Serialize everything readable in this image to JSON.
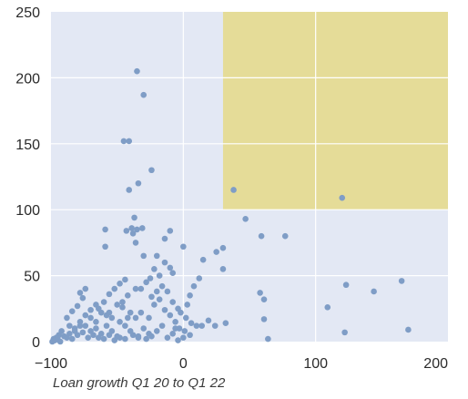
{
  "chart_data": {
    "type": "scatter",
    "xlabel": "Loan growth Q1 20 to Q1 22",
    "ylabel": "",
    "xlim": [
      -100,
      200
    ],
    "ylim": [
      0,
      250
    ],
    "x_ticks": [
      "−100",
      "0",
      "100",
      "200"
    ],
    "y_ticks": [
      "0",
      "50",
      "100",
      "150",
      "200",
      "250"
    ],
    "grid": true,
    "colors": {
      "plot_bg": "#e3e8f4",
      "grid": "#ffffff",
      "points": "#7f9dc6",
      "highlight": "#e5dc98"
    },
    "highlight_region": {
      "x": [
        30,
        200
      ],
      "y": [
        100,
        250
      ]
    },
    "points": [
      [
        -35,
        205
      ],
      [
        -30,
        187
      ],
      [
        -45,
        152
      ],
      [
        -41,
        152
      ],
      [
        -34,
        120
      ],
      [
        -24,
        130
      ],
      [
        -41,
        115
      ],
      [
        38,
        115
      ],
      [
        120,
        109
      ],
      [
        -37,
        94
      ],
      [
        -39,
        86
      ],
      [
        -31,
        86
      ],
      [
        -59,
        85
      ],
      [
        -43,
        84
      ],
      [
        -35,
        85
      ],
      [
        -38,
        82
      ],
      [
        -10,
        84
      ],
      [
        -14,
        78
      ],
      [
        -59,
        72
      ],
      [
        0,
        72
      ],
      [
        -36,
        75
      ],
      [
        -30,
        65
      ],
      [
        -20,
        65
      ],
      [
        -14,
        60
      ],
      [
        -10,
        56
      ],
      [
        -8,
        52
      ],
      [
        -22,
        55
      ],
      [
        -18,
        50
      ],
      [
        -25,
        48
      ],
      [
        -28,
        45
      ],
      [
        -32,
        40
      ],
      [
        -44,
        47
      ],
      [
        -48,
        44
      ],
      [
        -52,
        40
      ],
      [
        -56,
        36
      ],
      [
        -60,
        30
      ],
      [
        -66,
        28
      ],
      [
        -70,
        24
      ],
      [
        -74,
        40
      ],
      [
        -78,
        37
      ],
      [
        -76,
        33
      ],
      [
        -80,
        27
      ],
      [
        -84,
        23
      ],
      [
        -88,
        18
      ],
      [
        -62,
        22
      ],
      [
        -58,
        20
      ],
      [
        -54,
        18
      ],
      [
        -46,
        26
      ],
      [
        -40,
        22
      ],
      [
        -36,
        18
      ],
      [
        -32,
        22
      ],
      [
        -26,
        18
      ],
      [
        -22,
        28
      ],
      [
        -18,
        32
      ],
      [
        -14,
        24
      ],
      [
        -10,
        20
      ],
      [
        -6,
        15
      ],
      [
        -3,
        10
      ],
      [
        1,
        8
      ],
      [
        5,
        5
      ],
      [
        10,
        12
      ],
      [
        14,
        12
      ],
      [
        19,
        16
      ],
      [
        24,
        12
      ],
      [
        30,
        71
      ],
      [
        30,
        55
      ],
      [
        25,
        68
      ],
      [
        15,
        62
      ],
      [
        12,
        48
      ],
      [
        8,
        42
      ],
      [
        5,
        35
      ],
      [
        3,
        28
      ],
      [
        -2,
        22
      ],
      [
        -6,
        10
      ],
      [
        -16,
        12
      ],
      [
        -20,
        8
      ],
      [
        -26,
        6
      ],
      [
        -30,
        10
      ],
      [
        -34,
        4
      ],
      [
        -40,
        8
      ],
      [
        -44,
        12
      ],
      [
        -50,
        4
      ],
      [
        -54,
        8
      ],
      [
        -58,
        12
      ],
      [
        -62,
        6
      ],
      [
        -66,
        10
      ],
      [
        -70,
        8
      ],
      [
        -74,
        12
      ],
      [
        -78,
        15
      ],
      [
        -82,
        10
      ],
      [
        -86,
        6
      ],
      [
        -90,
        4
      ],
      [
        -92,
        8
      ],
      [
        -94,
        5
      ],
      [
        -96,
        3
      ],
      [
        -98,
        2
      ],
      [
        -99,
        0
      ],
      [
        -97,
        1
      ],
      [
        -95,
        2
      ],
      [
        -93,
        0
      ],
      [
        -88,
        3
      ],
      [
        -84,
        2
      ],
      [
        -80,
        5
      ],
      [
        -76,
        7
      ],
      [
        -72,
        3
      ],
      [
        -68,
        5
      ],
      [
        -64,
        3
      ],
      [
        -60,
        2
      ],
      [
        -56,
        5
      ],
      [
        -52,
        1
      ],
      [
        -48,
        3
      ],
      [
        -44,
        2
      ],
      [
        -38,
        5
      ],
      [
        -34,
        3
      ],
      [
        -28,
        2
      ],
      [
        -24,
        4
      ],
      [
        -12,
        3
      ],
      [
        -8,
        6
      ],
      [
        -4,
        1
      ],
      [
        0,
        3
      ],
      [
        32,
        14
      ],
      [
        47,
        93
      ],
      [
        59,
        80
      ],
      [
        77,
        80
      ],
      [
        58,
        37
      ],
      [
        61,
        32
      ],
      [
        61,
        17
      ],
      [
        64,
        2
      ],
      [
        109,
        26
      ],
      [
        123,
        43
      ],
      [
        122,
        7
      ],
      [
        144,
        38
      ],
      [
        165,
        46
      ],
      [
        170,
        9
      ],
      [
        -36,
        40
      ],
      [
        -42,
        35
      ],
      [
        -46,
        30
      ],
      [
        -50,
        28
      ],
      [
        -20,
        38
      ],
      [
        -24,
        34
      ],
      [
        -16,
        42
      ],
      [
        -12,
        38
      ],
      [
        -8,
        30
      ],
      [
        -4,
        25
      ],
      [
        2,
        18
      ],
      [
        6,
        14
      ],
      [
        -66,
        15
      ],
      [
        -70,
        18
      ],
      [
        -74,
        20
      ],
      [
        -78,
        12
      ],
      [
        -82,
        8
      ],
      [
        -86,
        12
      ],
      [
        -64,
        25
      ],
      [
        -56,
        22
      ],
      [
        -48,
        15
      ],
      [
        -42,
        18
      ]
    ]
  }
}
